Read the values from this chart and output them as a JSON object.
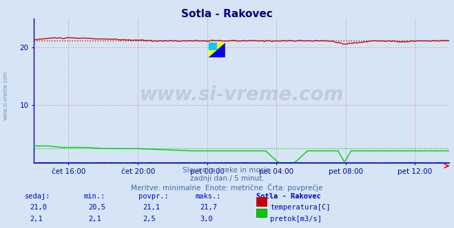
{
  "title": "Sotla - Rakovec",
  "title_color": "#000080",
  "bg_color": "#d5e5f5",
  "plot_bg_color": "#d5e5f5",
  "grid_color": "#e08080",
  "grid_linestyle": ":",
  "x_tick_labels": [
    "čet 16:00",
    "čet 20:00",
    "pet 00:00",
    "pet 04:00",
    "pet 08:00",
    "pet 12:00"
  ],
  "x_tick_positions": [
    0.083,
    0.25,
    0.417,
    0.583,
    0.75,
    0.917
  ],
  "ylim": [
    0,
    25
  ],
  "yticks": [
    10,
    20
  ],
  "temp_avg": 21.1,
  "temp_max": 21.7,
  "temp_min": 20.5,
  "flow_avg": 2.5,
  "flow_max": 3.0,
  "flow_min": 2.1,
  "temp_color": "#cc0000",
  "flow_color": "#00cc00",
  "height_color": "#0000bb",
  "line_width": 1.0,
  "watermark": "www.si-vreme.com",
  "subtitle1": "Slovenija / reke in morje.",
  "subtitle2": "zadnji dan / 5 minut.",
  "subtitle3": "Meritve: minimalne  Enote: metrične  Črta: povprečje",
  "subtitle_color": "#4466aa",
  "label_color": "#000099",
  "table_header_sedaj": "sedaj:",
  "table_header_min": "min.:",
  "table_header_povpr": "povpr.:",
  "table_header_maks": "maks.:",
  "table_header_loc": "Sotla - Rakovec",
  "temp_sedaj": "21,0",
  "temp_min_s": "20,5",
  "temp_avg_s": "21,1",
  "temp_max_s": "21,7",
  "flow_sedaj": "2,1",
  "flow_min_s": "2,1",
  "flow_avg_s": "2,5",
  "flow_max_s": "3,0",
  "table_color": "#0000cc",
  "num_points": 288
}
